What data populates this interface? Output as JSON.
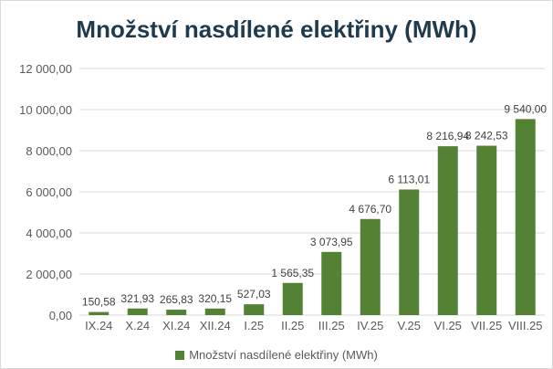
{
  "chart_data": {
    "type": "bar",
    "title": "Množství nasdílené elektřiny (MWh)",
    "xlabel": "",
    "ylabel": "",
    "categories": [
      "IX.24",
      "X.24",
      "XI.24",
      "XII.24",
      "I.25",
      "II.25",
      "III.25",
      "IV.25",
      "V.25",
      "VI.25",
      "VII.25",
      "VIII.25"
    ],
    "series": [
      {
        "name": "Množství nasdílené elektřiny (MWh)",
        "values": [
          150.58,
          321.93,
          265.83,
          320.15,
          527.03,
          1565.35,
          3073.95,
          4676.7,
          6113.01,
          8216.94,
          8242.53,
          9540.0
        ]
      }
    ],
    "data_labels": [
      "150,58",
      "321,93",
      "265,83",
      "320,15",
      "527,03",
      "1 565,35",
      "3 073,95",
      "4 676,70",
      "6 113,01",
      "8 216,94",
      "8 242,53",
      "9 540,00"
    ],
    "y_ticks": [
      0,
      2000,
      4000,
      6000,
      8000,
      10000,
      12000
    ],
    "y_tick_labels": [
      "0,00",
      "2 000,00",
      "4 000,00",
      "6 000,00",
      "8 000,00",
      "10 000,00",
      "12 000,00"
    ],
    "ylim": [
      0,
      12000
    ],
    "grid": true,
    "legend": "bottom",
    "bar_color": "#548235",
    "grid_color": "#d9d9d9"
  }
}
